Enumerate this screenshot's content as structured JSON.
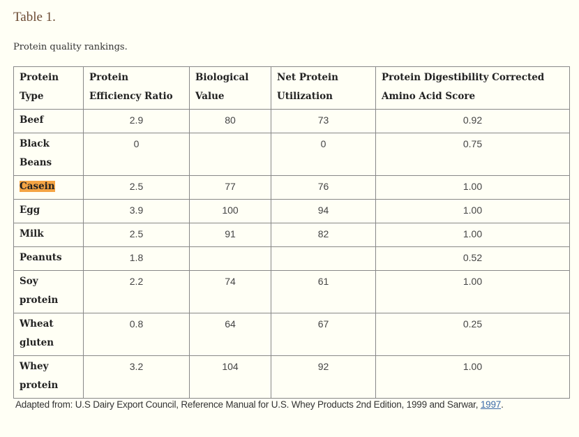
{
  "title": "Table 1.",
  "caption": "Protein quality rankings.",
  "table": {
    "headers": [
      "Protein Type",
      "Protein Efficiency Ratio",
      "Biological Value",
      "Net Protein Utilization",
      "Protein Digestibility Corrected Amino Acid Score"
    ],
    "rows": [
      [
        "Beef",
        "2.9",
        "80",
        "73",
        "0.92"
      ],
      [
        "Black Beans",
        "0",
        "",
        "0",
        "0.75"
      ],
      [
        "Casein",
        "2.5",
        "77",
        "76",
        "1.00"
      ],
      [
        "Egg",
        "3.9",
        "100",
        "94",
        "1.00"
      ],
      [
        "Milk",
        "2.5",
        "91",
        "82",
        "1.00"
      ],
      [
        "Peanuts",
        "1.8",
        "",
        "",
        "0.52"
      ],
      [
        "Soy protein",
        "2.2",
        "74",
        "61",
        "1.00"
      ],
      [
        "Wheat gluten",
        "0.8",
        "64",
        "67",
        "0.25"
      ],
      [
        "Whey protein",
        "3.2",
        "104",
        "92",
        "1.00"
      ]
    ],
    "highlighted": "Casein",
    "highlight_color": "#f4a444"
  },
  "footnote": {
    "text": "Adapted from: U.S Dairy Export Council, Reference Manual for U.S. Whey Products 2nd Edition, 1999 and Sarwar, ",
    "link": "1997",
    "end": "."
  }
}
